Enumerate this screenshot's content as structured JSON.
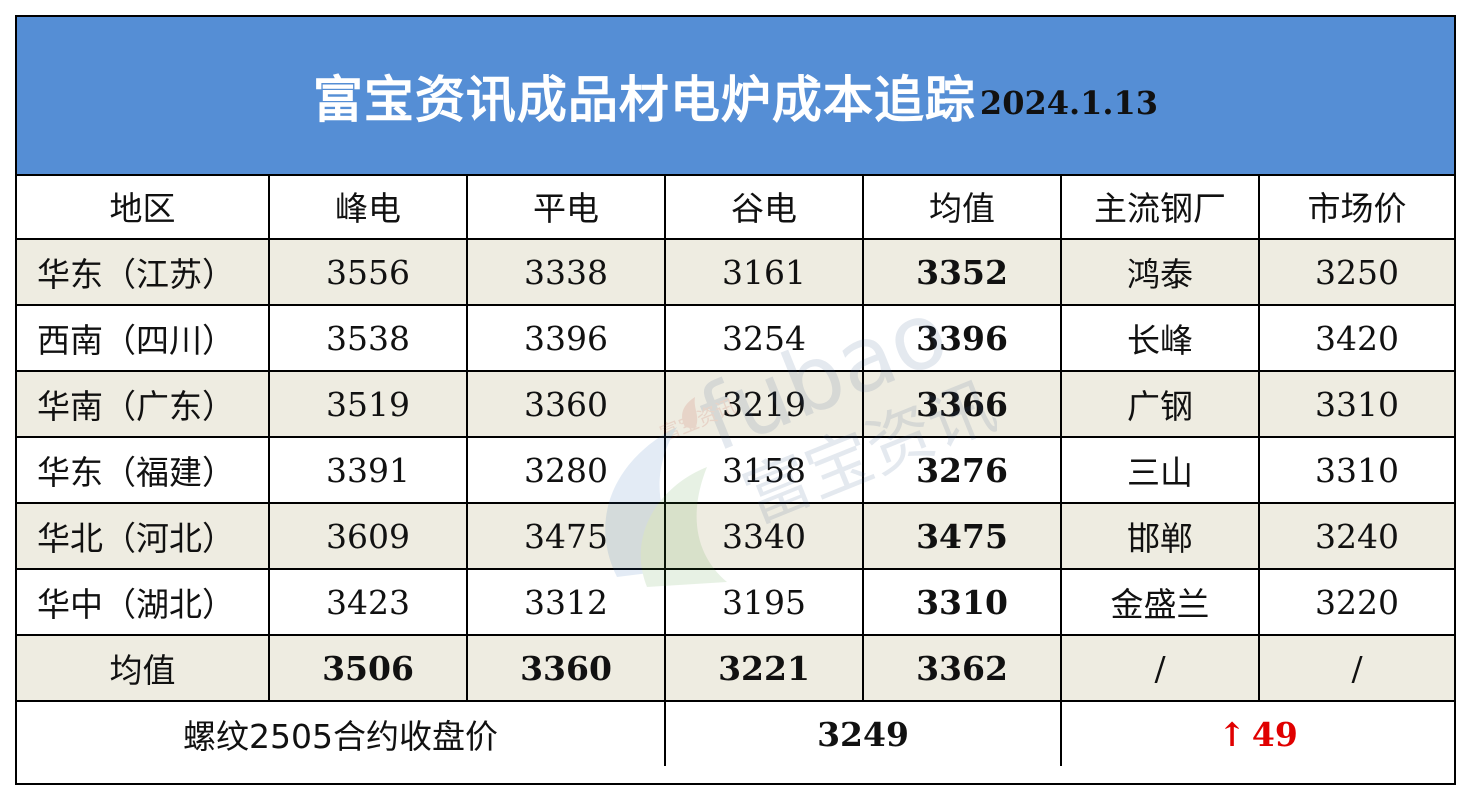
{
  "header": {
    "title": "富宝资讯成品材电炉成本追踪",
    "date": "2024.1.13"
  },
  "columns": [
    "地区",
    "峰电",
    "平电",
    "谷电",
    "均值",
    "主流钢厂",
    "市场价"
  ],
  "rows": [
    {
      "region": "华东（江苏）",
      "peak": "3556",
      "flat": "3338",
      "valley": "3161",
      "avg": "3352",
      "mill": "鸿泰",
      "market": "3250",
      "shaded": true
    },
    {
      "region": "西南（四川）",
      "peak": "3538",
      "flat": "3396",
      "valley": "3254",
      "avg": "3396",
      "mill": "长峰",
      "market": "3420",
      "shaded": false
    },
    {
      "region": "华南（广东）",
      "peak": "3519",
      "flat": "3360",
      "valley": "3219",
      "avg": "3366",
      "mill": "广钢",
      "market": "3310",
      "shaded": true
    },
    {
      "region": "华东（福建）",
      "peak": "3391",
      "flat": "3280",
      "valley": "3158",
      "avg": "3276",
      "mill": "三山",
      "market": "3310",
      "shaded": false
    },
    {
      "region": "华北（河北）",
      "peak": "3609",
      "flat": "3475",
      "valley": "3340",
      "avg": "3475",
      "mill": "邯郸",
      "market": "3240",
      "shaded": true
    },
    {
      "region": "华中（湖北）",
      "peak": "3423",
      "flat": "3312",
      "valley": "3195",
      "avg": "3310",
      "mill": "金盛兰",
      "market": "3220",
      "shaded": false
    }
  ],
  "average_row": {
    "label": "均值",
    "peak": "3506",
    "flat": "3360",
    "valley": "3221",
    "avg": "3362",
    "mill": "/",
    "market": "/"
  },
  "futures_row": {
    "label": "螺纹2505合约收盘价",
    "price": "3249",
    "change_arrow": "↑",
    "change": "49",
    "change_color": "#e00000"
  },
  "watermark": {
    "text_latin": "fubao",
    "text_cn": "富宝资讯",
    "small_text": "富宝资讯",
    "icon": "fubao-flame-logo-icon"
  },
  "colors": {
    "banner": "#558ed5",
    "shaded_row": "#eeece1",
    "up": "#e00000"
  }
}
